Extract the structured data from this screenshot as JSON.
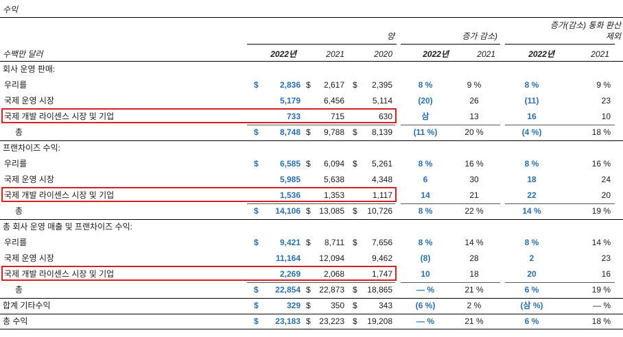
{
  "title": "수익",
  "header": {
    "unit_label": "수백만 달러",
    "amount_group": "양",
    "change_group": "증가 감소)",
    "fx_group_line1": "증가(감소) 통화 환산",
    "fx_group_line2": "제외",
    "columns": [
      "2022년",
      "2021",
      "2020",
      "2022년",
      "2021",
      "2022년",
      "2021"
    ]
  },
  "colors": {
    "accent_blue": "#2a6fb0",
    "highlight_red": "#d42020"
  },
  "sections": [
    {
      "heading": "회사 운영 판매:",
      "rows": [
        {
          "label": "우리를",
          "d1": "$",
          "v2022": "2,836",
          "d2": "$",
          "v2021": "2,617",
          "d3": "$",
          "v2020": "2,395",
          "c2022": "8 %",
          "c2021": "9 %",
          "f2022": "8 %",
          "f2021": "9 %"
        },
        {
          "label": "국제 운영 시장",
          "d1": "",
          "v2022": "5,179",
          "d2": "",
          "v2021": "6,456",
          "d3": "",
          "v2020": "5,114",
          "c2022": "(20)",
          "c2021": "26",
          "f2022": "(11)",
          "f2021": "23"
        },
        {
          "label": "국제 개발 라이센스 시장 및 기업",
          "d1": "",
          "v2022": "733",
          "d2": "",
          "v2021": "715",
          "d3": "",
          "v2020": "630",
          "c2022": "삼",
          "c2021": "13",
          "f2022": "16",
          "f2021": "10"
        }
      ],
      "total": {
        "label": "총",
        "d1": "$",
        "v2022": "8,748",
        "d2": "$",
        "v2021": "9,788",
        "d3": "$",
        "v2020": "8,139",
        "c2022": "(11 %)",
        "c2021": "20 %",
        "f2022": "(4 %)",
        "f2021": "18 %"
      }
    },
    {
      "heading": "프랜차이즈 수익:",
      "rows": [
        {
          "label": "우리를",
          "d1": "$",
          "v2022": "6,585",
          "d2": "$",
          "v2021": "6,094",
          "d3": "$",
          "v2020": "5,261",
          "c2022": "8 %",
          "c2021": "16 %",
          "f2022": "8 %",
          "f2021": "16 %"
        },
        {
          "label": "국제 운영 시장",
          "d1": "",
          "v2022": "5,985",
          "d2": "",
          "v2021": "5,638",
          "d3": "",
          "v2020": "4,348",
          "c2022": "6",
          "c2021": "30",
          "f2022": "18",
          "f2021": "24"
        },
        {
          "label": "국제 개발 라이센스 시장 및 기업",
          "d1": "",
          "v2022": "1,536",
          "d2": "",
          "v2021": "1,353",
          "d3": "",
          "v2020": "1,117",
          "c2022": "14",
          "c2021": "21",
          "f2022": "22",
          "f2021": "20"
        }
      ],
      "total": {
        "label": "총",
        "d1": "$",
        "v2022": "14,106",
        "d2": "$",
        "v2021": "13,085",
        "d3": "$",
        "v2020": "10,726",
        "c2022": "8 %",
        "c2021": "22 %",
        "f2022": "14 %",
        "f2021": "19 %"
      }
    },
    {
      "heading": "총 회사 운영 매출 및 프랜차이즈 수익:",
      "rows": [
        {
          "label": "우리를",
          "d1": "$",
          "v2022": "9,421",
          "d2": "$",
          "v2021": "8,711",
          "d3": "$",
          "v2020": "7,656",
          "c2022": "8 %",
          "c2021": "14 %",
          "f2022": "8 %",
          "f2021": "14 %"
        },
        {
          "label": "국제 운영 시장",
          "d1": "",
          "v2022": "11,164",
          "d2": "",
          "v2021": "12,094",
          "d3": "",
          "v2020": "9,462",
          "c2022": "(8)",
          "c2021": "28",
          "f2022": "2",
          "f2021": "23"
        },
        {
          "label": "국제 개발 라이센스 시장 및 기업",
          "d1": "",
          "v2022": "2,269",
          "d2": "",
          "v2021": "2,068",
          "d3": "",
          "v2020": "1,747",
          "c2022": "10",
          "c2021": "18",
          "f2022": "20",
          "f2021": "16"
        }
      ],
      "total": {
        "label": "총",
        "d1": "$",
        "v2022": "22,854",
        "d2": "$",
        "v2021": "22,873",
        "d3": "$",
        "v2020": "18,865",
        "c2022": "— %",
        "c2021": "21 %",
        "f2022": "6 %",
        "f2021": "19 %"
      }
    }
  ],
  "other": {
    "label": "합계 기타수익",
    "d1": "$",
    "v2022": "329",
    "d2": "$",
    "v2021": "350",
    "d3": "$",
    "v2020": "343",
    "c2022": "(6 %)",
    "c2021": "2 %",
    "f2022": "(삼 %)",
    "f2021": "— %"
  },
  "grand_total": {
    "label": "총 수익",
    "d1": "$",
    "v2022": "23,183",
    "d2": "$",
    "v2021": "23,223",
    "d3": "$",
    "v2020": "19,208",
    "c2022": "— %",
    "c2021": "21 %",
    "f2022": "6 %",
    "f2021": "18 %"
  }
}
